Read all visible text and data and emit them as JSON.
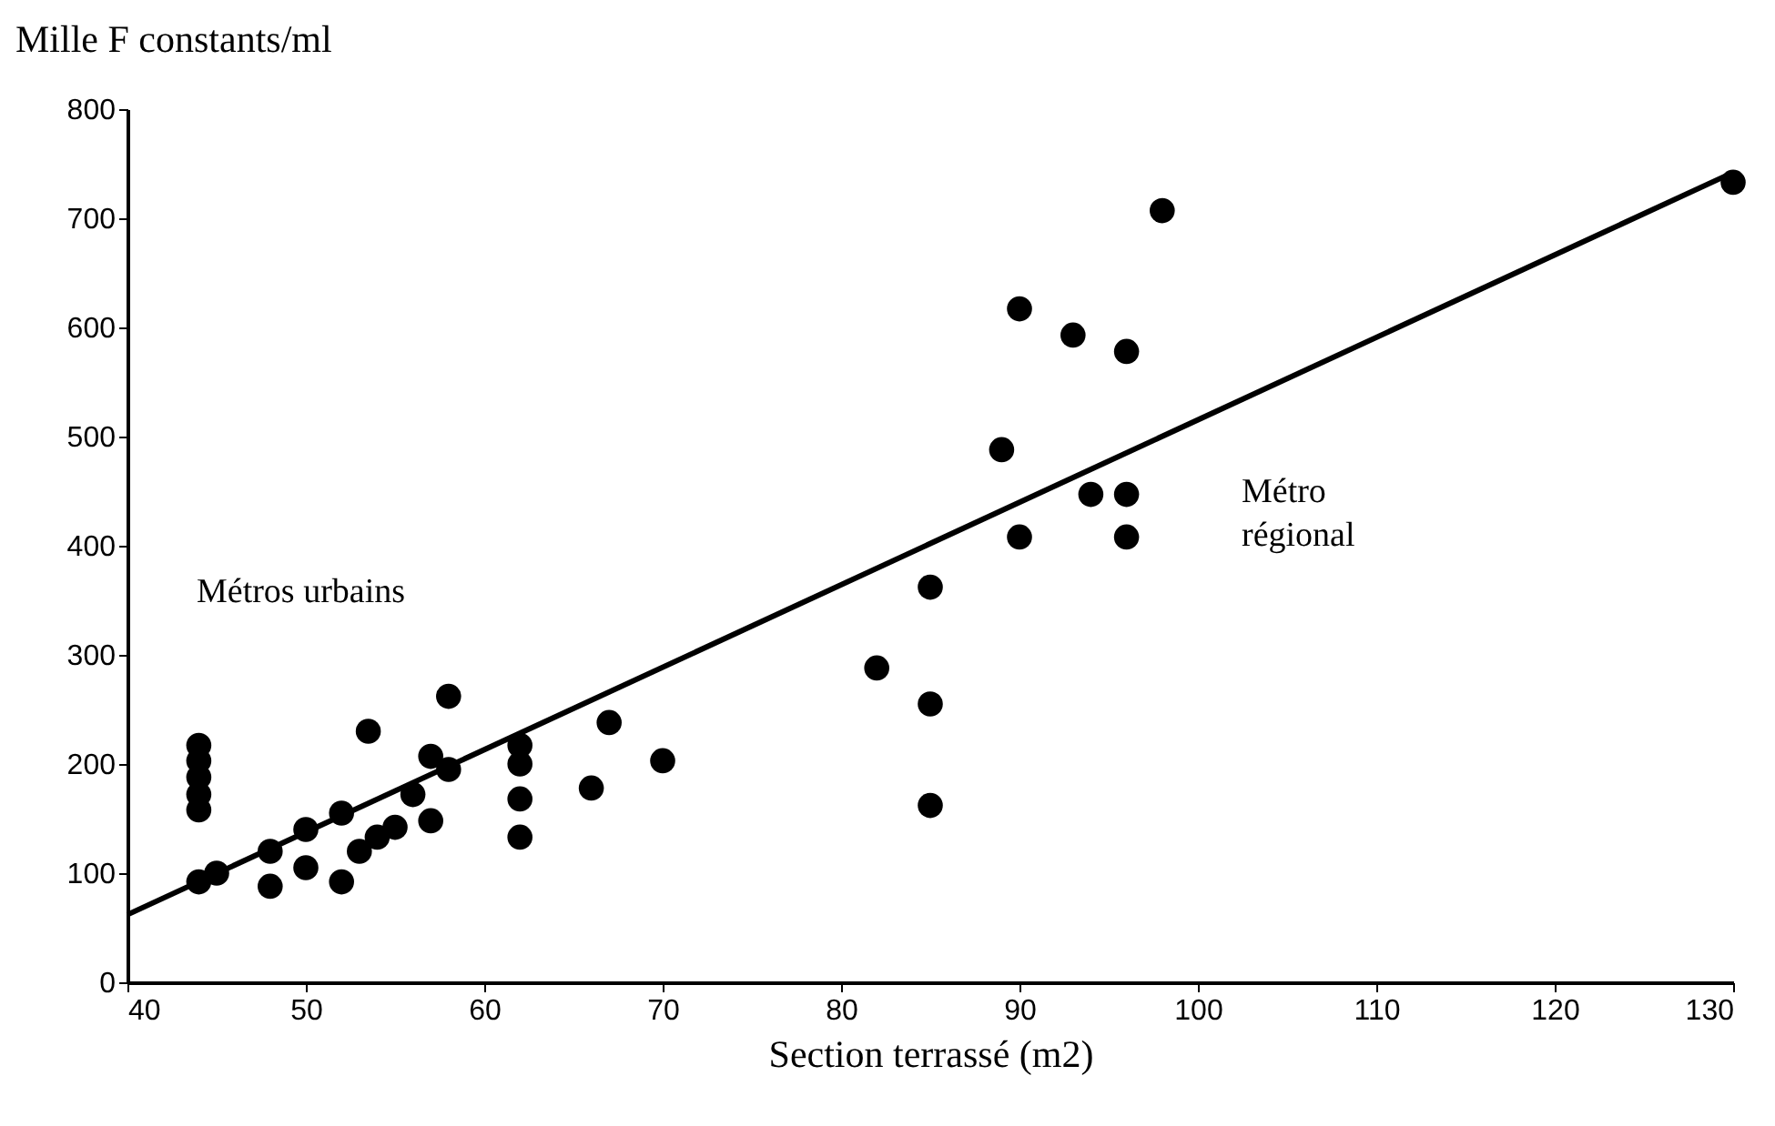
{
  "chart_data": {
    "type": "scatter",
    "xlabel": "Section terrassé (m2)",
    "ylabel": "Mille F constants/ml",
    "xlim": [
      40,
      130
    ],
    "xticks": [
      40,
      50,
      60,
      70,
      80,
      90,
      100,
      110,
      120,
      130
    ],
    "ylim": [
      0,
      800
    ],
    "yticks": [
      0,
      100,
      200,
      300,
      400,
      500,
      600,
      700,
      800
    ],
    "grid": false,
    "series": [
      {
        "marker": "circle",
        "color": "#000000",
        "x": [
          44,
          44,
          44,
          44,
          44,
          44,
          45,
          48,
          48,
          50,
          50,
          52,
          52,
          53,
          53.5,
          54,
          55,
          56,
          57,
          57,
          58,
          58,
          62,
          62,
          62,
          62,
          66,
          67,
          70,
          82,
          85,
          85,
          85,
          89,
          90,
          90,
          93,
          94,
          96,
          96,
          96,
          98,
          130
        ],
        "values": [
          217,
          203,
          188,
          172,
          158,
          92,
          100,
          120,
          88,
          140,
          105,
          155,
          92,
          120,
          230,
          133,
          142,
          172,
          207,
          148,
          195,
          262,
          217,
          200,
          168,
          133,
          178,
          238,
          203,
          288,
          362,
          255,
          162,
          488,
          617,
          408,
          593,
          447,
          578,
          447,
          408,
          707,
          733
        ]
      },
      {
        "type": "line",
        "color": "#000000",
        "x": [
          40,
          130
        ],
        "values": [
          62,
          742
        ]
      }
    ],
    "annotations": [
      "Métros urbains",
      "Métro\nrégional"
    ]
  }
}
